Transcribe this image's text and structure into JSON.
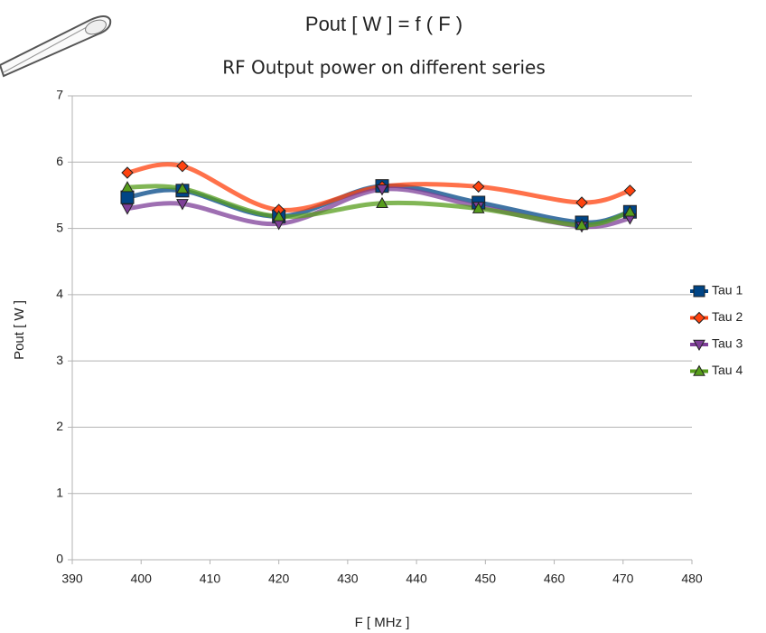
{
  "chart_data": {
    "type": "line",
    "smooth": true,
    "title": "Pout [ W ] = f ( F )",
    "subtitle": "RF Output power on different series",
    "xlabel": "F [ MHz ]",
    "ylabel": "Pout [ W ]",
    "x": [
      398,
      406,
      420,
      435,
      449,
      464,
      471
    ],
    "series": [
      {
        "name": "Tau 1",
        "color": "#004586",
        "marker": "square",
        "values": [
          5.47,
          5.57,
          5.18,
          5.64,
          5.39,
          5.09,
          5.25
        ]
      },
      {
        "name": "Tau 2",
        "color": "#ff420e",
        "marker": "diamond",
        "values": [
          5.84,
          5.94,
          5.28,
          5.63,
          5.63,
          5.39,
          5.57
        ]
      },
      {
        "name": "Tau 3",
        "color": "#7e3f98",
        "marker": "triangle-down",
        "values": [
          5.3,
          5.37,
          5.07,
          5.59,
          5.33,
          5.03,
          5.15
        ]
      },
      {
        "name": "Tau 4",
        "color": "#579d1c",
        "marker": "triangle-up",
        "values": [
          5.62,
          5.6,
          5.18,
          5.38,
          5.3,
          5.05,
          5.25
        ]
      }
    ],
    "xlim": [
      390,
      480
    ],
    "xticks": [
      390,
      400,
      410,
      420,
      430,
      440,
      450,
      460,
      470,
      480
    ],
    "ylim": [
      0,
      7
    ],
    "yticks": [
      0,
      1,
      2,
      3,
      4,
      5,
      6,
      7
    ],
    "grid": true,
    "legend": "right"
  }
}
